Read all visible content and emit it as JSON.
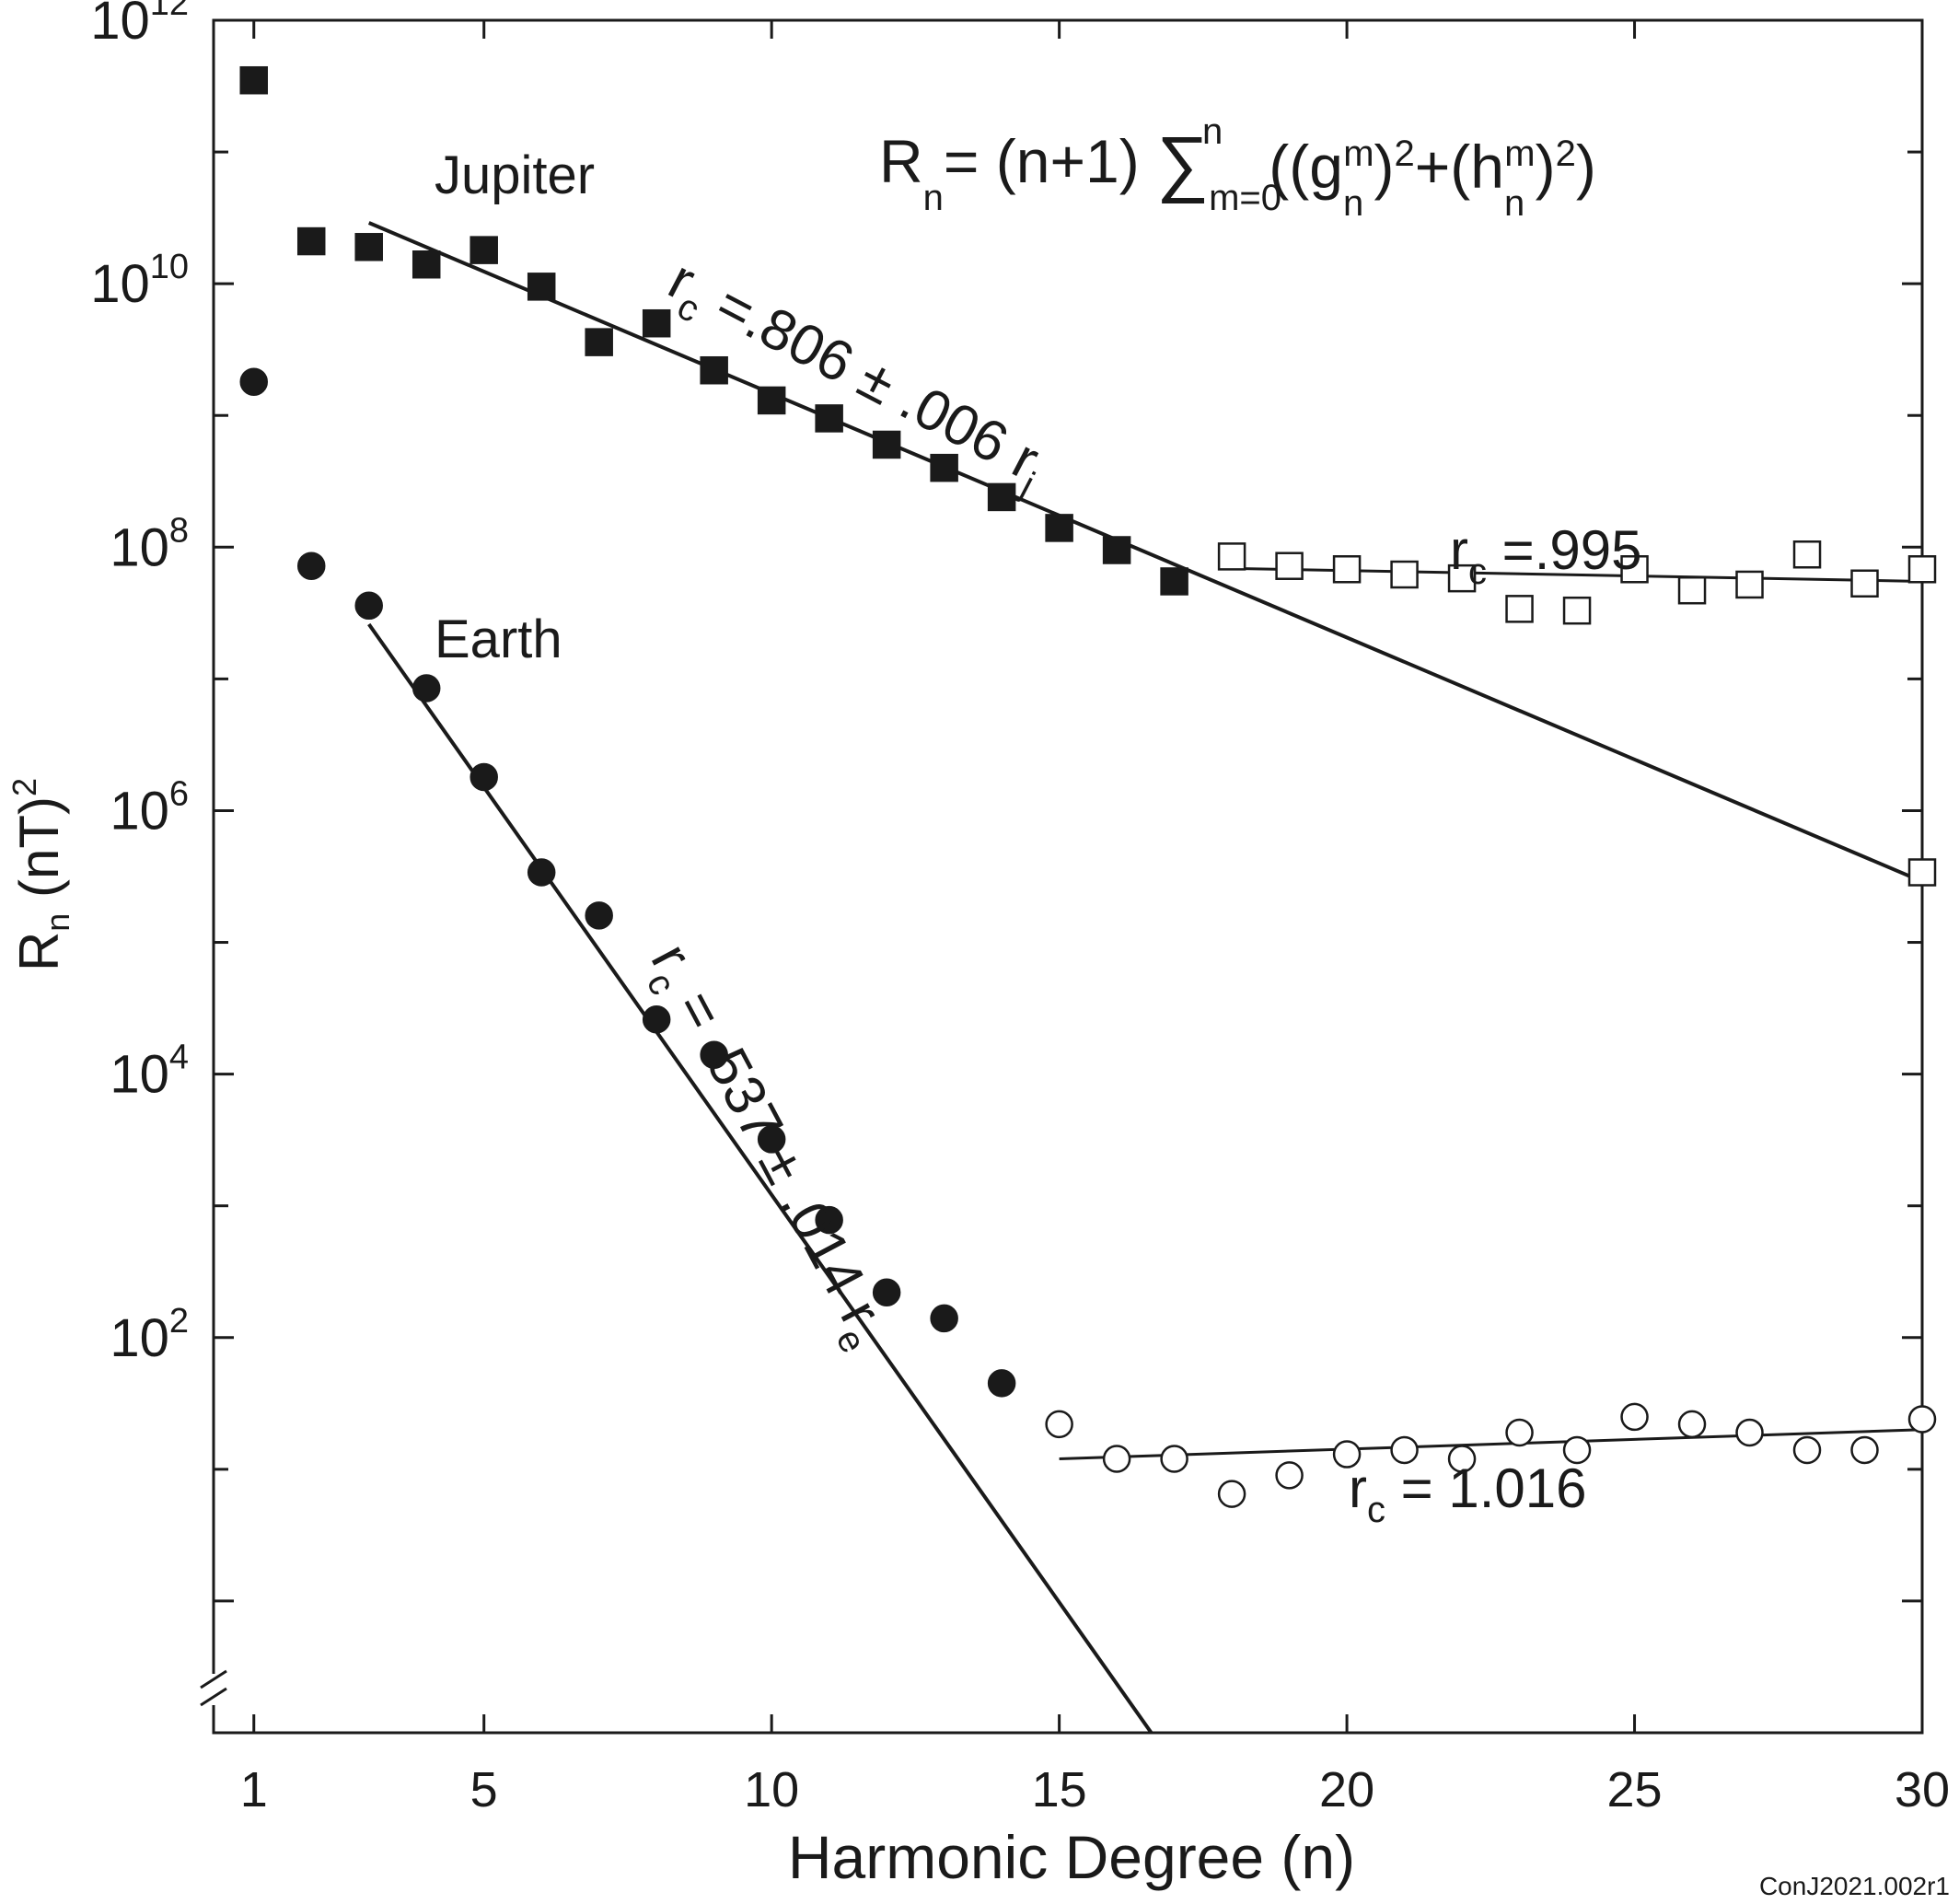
{
  "chart_data": {
    "type": "scatter",
    "xlabel": "Harmonic Degree (n)",
    "ylabel": "Rn (nT)2",
    "x_ticks": [
      "1",
      "5",
      "10",
      "15",
      "20",
      "25",
      "30"
    ],
    "y_ticks": [
      "10^12",
      "10^10",
      "10^8",
      "10^6",
      "10^4",
      "10^2"
    ],
    "xlim": [
      0.3,
      30
    ],
    "y_scale": "log",
    "ylim": [
      0.1,
      1000000000000
    ],
    "grid": false,
    "formula": "Rn= (n+1) Σ m=0 to n ((g n m)2+(h n m)2)",
    "series": [
      {
        "name": "Jupiter",
        "marker": "square",
        "filled_points": [
          [
            1,
            350000000000
          ],
          [
            2,
            21000000000
          ],
          [
            3,
            19000000000
          ],
          [
            4,
            14000000000
          ],
          [
            5,
            18000000000
          ],
          [
            6,
            9500000000
          ],
          [
            7,
            3600000000
          ],
          [
            8,
            5000000000
          ],
          [
            9,
            2200000000
          ],
          [
            10,
            1300000000
          ],
          [
            11,
            950000000
          ],
          [
            12,
            600000000
          ],
          [
            13,
            400000000
          ],
          [
            14,
            240000000
          ],
          [
            15,
            140000000
          ],
          [
            16,
            95000000
          ],
          [
            17,
            55000000
          ]
        ],
        "open_points": [
          [
            18,
            85000000
          ],
          [
            19,
            72000000
          ],
          [
            20,
            68000000
          ],
          [
            21,
            62000000
          ],
          [
            22,
            58000000
          ],
          [
            23,
            34000000
          ],
          [
            24,
            33000000
          ],
          [
            25,
            68000000
          ],
          [
            26,
            47000000
          ],
          [
            27,
            52000000
          ],
          [
            28,
            88000000
          ],
          [
            29,
            53000000
          ],
          [
            30,
            68000000
          ],
          [
            30,
            340000
          ]
        ],
        "fits": [
          {
            "label": "rc =.806 ± .006 rj",
            "from": [
              3,
              29000000000
            ],
            "to": [
              30,
              290000
            ]
          },
          {
            "label": "rc =.995",
            "from": [
              18,
              69000000
            ],
            "to": [
              30,
              55000000
            ]
          }
        ]
      },
      {
        "name": "Earth",
        "marker": "circle",
        "filled_points": [
          [
            1,
            1800000000
          ],
          [
            2,
            72000000
          ],
          [
            3,
            36000000
          ],
          [
            4,
            8500000
          ],
          [
            5,
            1800000
          ],
          [
            6,
            340000
          ],
          [
            7,
            160000
          ],
          [
            8,
            26000
          ],
          [
            9,
            14000
          ],
          [
            10,
            3200
          ],
          [
            11,
            780
          ],
          [
            12,
            220
          ],
          [
            13,
            140
          ],
          [
            14,
            45
          ]
        ],
        "open_points": [
          [
            15,
            22
          ],
          [
            16,
            12
          ],
          [
            17,
            12
          ],
          [
            18,
            6.5
          ],
          [
            19,
            9
          ],
          [
            20,
            13
          ],
          [
            21,
            14
          ],
          [
            22,
            12
          ],
          [
            23,
            19
          ],
          [
            24,
            14
          ],
          [
            25,
            25
          ],
          [
            26,
            22
          ],
          [
            27,
            19
          ],
          [
            28,
            14
          ],
          [
            29,
            14
          ],
          [
            30,
            24
          ]
        ],
        "fits": [
          {
            "label": "rc = .537 ± .014 re",
            "from": [
              3,
              26000000
            ],
            "to": [
              16.6,
              0.1
            ]
          },
          {
            "label": "rc = 1.016",
            "from": [
              15,
              12
            ],
            "to": [
              30,
              20
            ]
          }
        ]
      }
    ]
  },
  "labels": {
    "jupiter": "Jupiter",
    "earth": "Earth",
    "credit": "ConJ2021.002r1"
  }
}
